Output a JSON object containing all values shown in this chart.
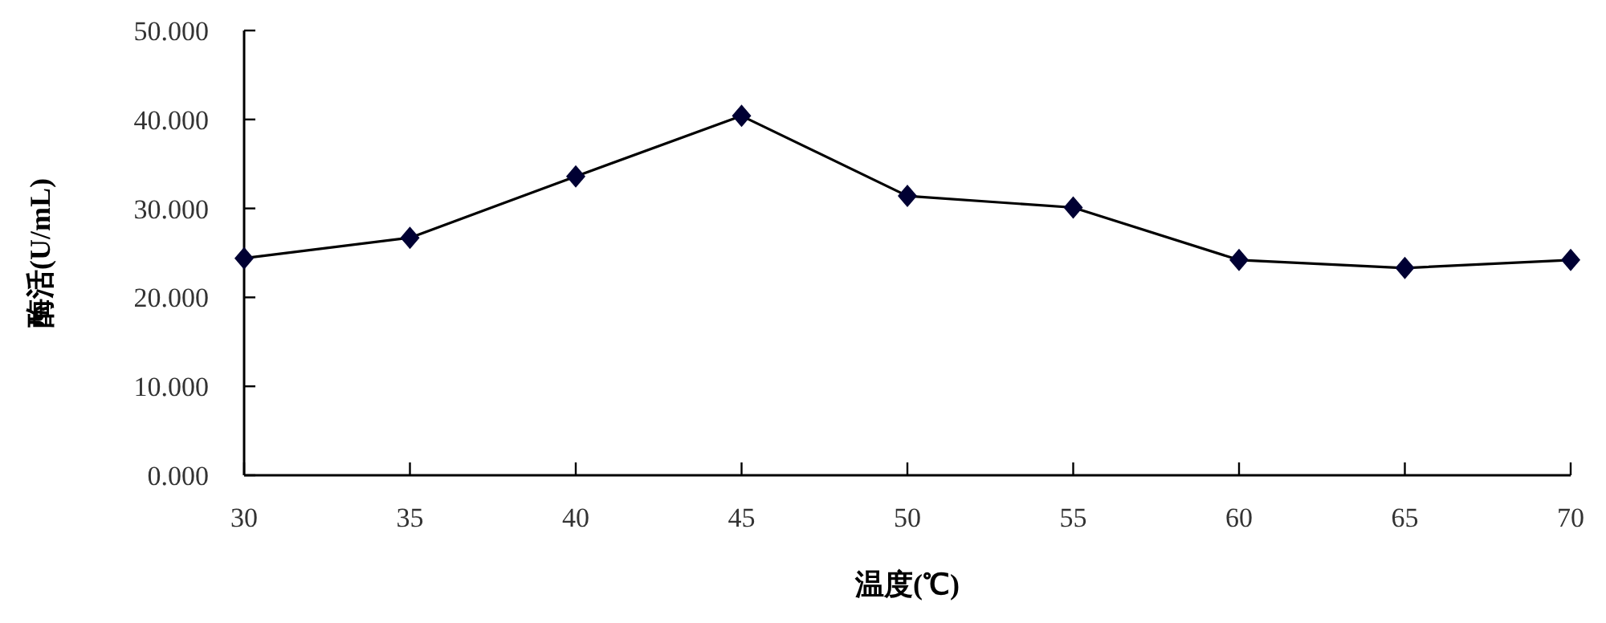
{
  "chart_data": {
    "type": "line",
    "xlabel": "温度(℃)",
    "ylabel": "酶活(U/mL)",
    "x": [
      30,
      35,
      40,
      45,
      50,
      55,
      60,
      65,
      70
    ],
    "series": [
      {
        "color": "#000033",
        "values": [
          24.4,
          26.7,
          33.6,
          40.4,
          31.4,
          30.1,
          24.2,
          23.3,
          24.2
        ]
      }
    ],
    "xlim": [
      30,
      70
    ],
    "xticks": [
      30,
      35,
      40,
      45,
      50,
      55,
      60,
      65,
      70
    ],
    "ylim": [
      0,
      50
    ],
    "yticks": [
      {
        "value": 0,
        "label": "0.000"
      },
      {
        "value": 10,
        "label": "10.000"
      },
      {
        "value": 20,
        "label": "20.000"
      },
      {
        "value": 30,
        "label": "30.000"
      },
      {
        "value": 40,
        "label": "40.000"
      },
      {
        "value": 50,
        "label": "50.000"
      }
    ],
    "marker": "diamond",
    "line_style": "solid"
  }
}
